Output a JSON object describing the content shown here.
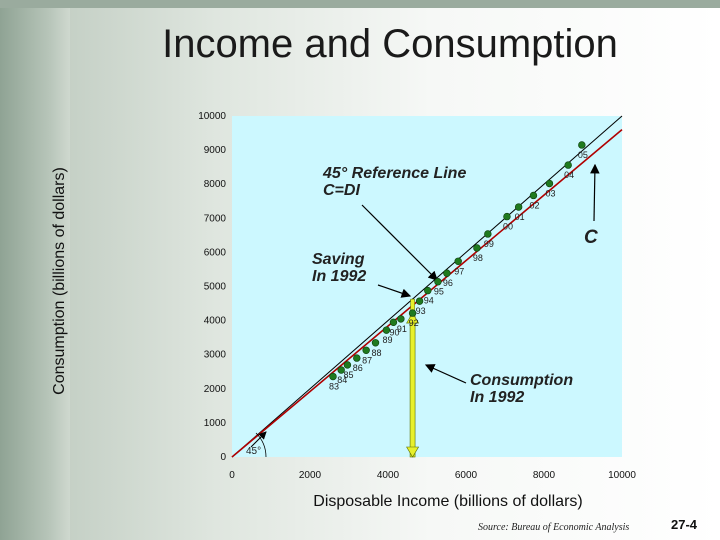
{
  "title": "Income and Consumption",
  "source": "Source: Bureau of Economic Analysis",
  "page_number": "27-4",
  "colors": {
    "plot_background": "#ccf8ff",
    "reference_line": "#000000",
    "consumption_line": "#b00000",
    "point": "#1f7a1f",
    "saving_bar": "#e8f02a"
  },
  "annotations": {
    "reference_line": [
      "45° Reference Line",
      "C=DI"
    ],
    "saving": [
      "Saving",
      "In 1992"
    ],
    "consumption": [
      "Consumption",
      "In 1992"
    ],
    "c_label": "C",
    "angle": "45°"
  },
  "chart_data": {
    "type": "scatter",
    "title": "",
    "xlabel": "Disposable Income (billions of dollars)",
    "ylabel": "Consumption (billions of dollars)",
    "xlim": [
      0,
      10000
    ],
    "ylim": [
      0,
      10000
    ],
    "xticks": [
      0,
      2000,
      4000,
      6000,
      8000,
      10000
    ],
    "yticks": [
      0,
      1000,
      2000,
      3000,
      4000,
      5000,
      6000,
      7000,
      8000,
      9000,
      10000
    ],
    "grid": false,
    "reference_line": {
      "from": [
        0,
        0
      ],
      "to": [
        10000,
        10000
      ]
    },
    "consumption_line": {
      "from": [
        0,
        0
      ],
      "to": [
        10000,
        9600
      ]
    },
    "points": [
      {
        "label": "83",
        "x": 2590,
        "y": 2360
      },
      {
        "label": "84",
        "x": 2800,
        "y": 2550
      },
      {
        "label": "85",
        "x": 2960,
        "y": 2700
      },
      {
        "label": "86",
        "x": 3200,
        "y": 2900
      },
      {
        "label": "87",
        "x": 3440,
        "y": 3130
      },
      {
        "label": "88",
        "x": 3680,
        "y": 3350
      },
      {
        "label": "89",
        "x": 3960,
        "y": 3720
      },
      {
        "label": "90",
        "x": 4140,
        "y": 3950
      },
      {
        "label": "91",
        "x": 4330,
        "y": 4050
      },
      {
        "label": "92",
        "x": 4630,
        "y": 4220
      },
      {
        "label": "93",
        "x": 4810,
        "y": 4570
      },
      {
        "label": "94",
        "x": 5020,
        "y": 4880
      },
      {
        "label": "95",
        "x": 5280,
        "y": 5140
      },
      {
        "label": "96",
        "x": 5510,
        "y": 5390
      },
      {
        "label": "97",
        "x": 5800,
        "y": 5740
      },
      {
        "label": "98",
        "x": 6280,
        "y": 6130
      },
      {
        "label": "99",
        "x": 6560,
        "y": 6540
      },
      {
        "label": "00",
        "x": 7050,
        "y": 7050
      },
      {
        "label": "01",
        "x": 7350,
        "y": 7330
      },
      {
        "label": "02",
        "x": 7730,
        "y": 7670
      },
      {
        "label": "03",
        "x": 8140,
        "y": 8020
      },
      {
        "label": "04",
        "x": 8620,
        "y": 8560
      },
      {
        "label": "05",
        "x": 8970,
        "y": 9150
      }
    ],
    "saving_1992": {
      "x": 4630,
      "y_from": 4220,
      "y_to": 4630
    },
    "consumption_1992": {
      "x": 4630,
      "y_from": 0,
      "y_to": 4220
    }
  }
}
